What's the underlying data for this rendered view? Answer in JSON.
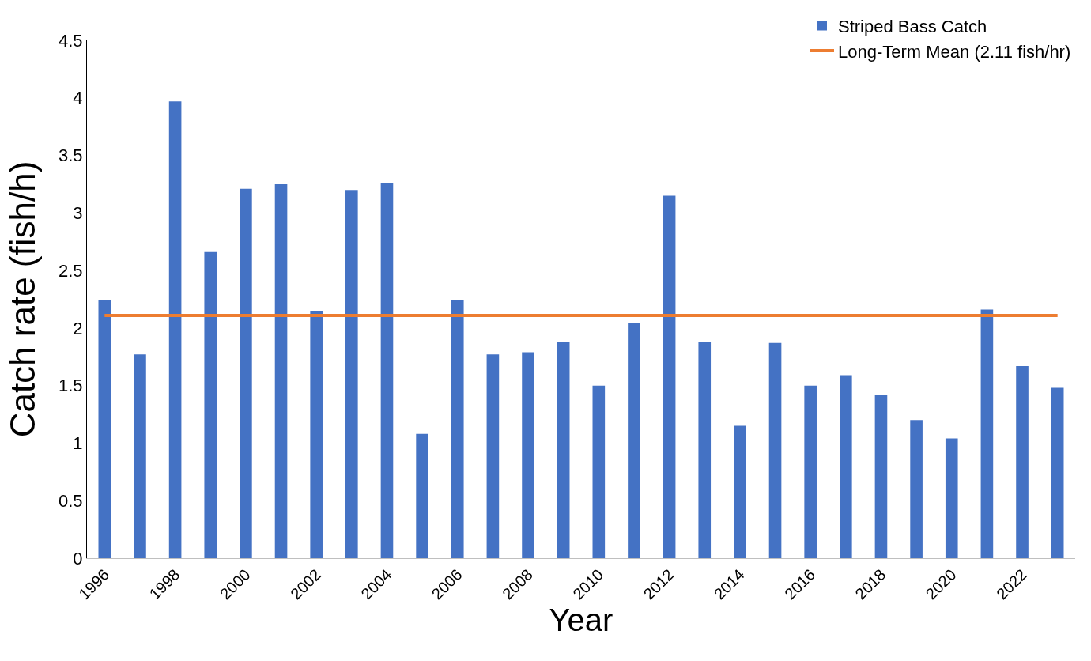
{
  "chart_data": {
    "type": "bar",
    "xlabel": "Year",
    "ylabel": "Catch rate (fish/h)",
    "x": [
      1996,
      1997,
      1998,
      1999,
      2000,
      2001,
      2002,
      2003,
      2004,
      2005,
      2006,
      2007,
      2008,
      2009,
      2010,
      2011,
      2012,
      2013,
      2014,
      2015,
      2016,
      2017,
      2018,
      2019,
      2020,
      2021,
      2022,
      2023
    ],
    "series": [
      {
        "name": "Striped Bass Catch",
        "color": "#4472c4",
        "values": [
          2.24,
          1.77,
          3.97,
          2.66,
          3.21,
          3.25,
          2.15,
          3.2,
          3.26,
          1.08,
          2.24,
          1.77,
          1.79,
          1.88,
          1.5,
          2.04,
          3.15,
          1.88,
          1.15,
          1.87,
          1.5,
          1.59,
          1.42,
          1.2,
          1.04,
          2.16,
          1.67,
          1.48
        ]
      }
    ],
    "ref_lines": [
      {
        "axis": "y",
        "value": 2.11,
        "label": "Long-Term Mean (2.11 fish/hr)",
        "color": "#ed7d31"
      }
    ],
    "xlim": [
      1995.5,
      2023.5
    ],
    "xticks": [
      1996,
      1998,
      2000,
      2002,
      2004,
      2006,
      2008,
      2010,
      2012,
      2014,
      2016,
      2018,
      2020,
      2022
    ],
    "ylim": [
      0,
      4.5
    ],
    "yticks": [
      0,
      0.5,
      1,
      1.5,
      2,
      2.5,
      3,
      3.5,
      4,
      4.5
    ],
    "grid": false,
    "legend": "top right"
  }
}
